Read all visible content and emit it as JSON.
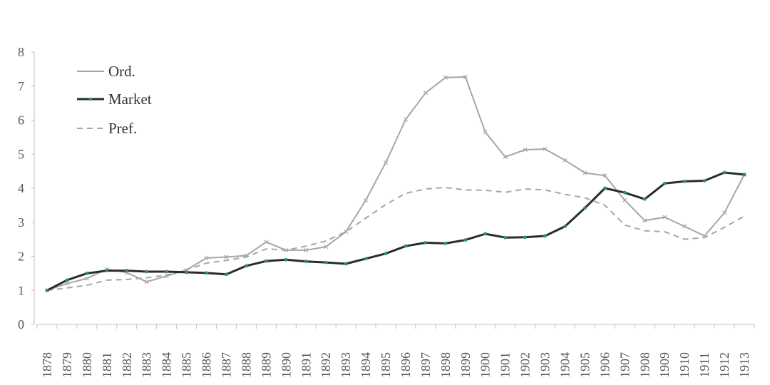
{
  "chart_data": {
    "type": "line",
    "x": [
      "1878",
      "1879",
      "1880",
      "1881",
      "1882",
      "1883",
      "1884",
      "1885",
      "1886",
      "1887",
      "1888",
      "1889",
      "1890",
      "1891",
      "1892",
      "1893",
      "1894",
      "1895",
      "1896",
      "1897",
      "1898",
      "1899",
      "1900",
      "1901",
      "1902",
      "1903",
      "1904",
      "1905",
      "1906",
      "1907",
      "1908",
      "1909",
      "1910",
      "1911",
      "1912",
      "1913"
    ],
    "series": [
      {
        "name": "Ord.",
        "color": "#a6a6a6",
        "style": "solid-x-markers",
        "values": [
          1.0,
          1.2,
          1.35,
          1.62,
          1.52,
          1.25,
          1.42,
          1.6,
          1.95,
          1.98,
          2.02,
          2.42,
          2.18,
          2.18,
          2.28,
          2.72,
          3.65,
          4.75,
          6.02,
          6.8,
          7.25,
          7.27,
          5.65,
          4.92,
          5.13,
          5.15,
          4.82,
          4.45,
          4.37,
          3.65,
          3.05,
          3.15,
          2.88,
          2.6,
          3.28,
          4.4
        ]
      },
      {
        "name": "Market",
        "color": "#2b2b2b",
        "marker_color": "#2e8b7a",
        "style": "solid-dot-markers",
        "values": [
          1.0,
          1.3,
          1.5,
          1.58,
          1.58,
          1.55,
          1.55,
          1.53,
          1.51,
          1.47,
          1.72,
          1.86,
          1.9,
          1.85,
          1.82,
          1.78,
          1.93,
          2.08,
          2.3,
          2.4,
          2.38,
          2.48,
          2.66,
          2.55,
          2.56,
          2.6,
          2.88,
          3.42,
          4.0,
          3.87,
          3.68,
          4.14,
          4.2,
          4.22,
          4.46,
          4.4
        ]
      },
      {
        "name": "Pref.",
        "color": "#a6a6a6",
        "style": "dashed",
        "values": [
          1.0,
          1.07,
          1.15,
          1.3,
          1.32,
          1.37,
          1.45,
          1.6,
          1.8,
          1.88,
          1.98,
          2.22,
          2.18,
          2.3,
          2.45,
          2.72,
          3.12,
          3.52,
          3.85,
          3.98,
          4.02,
          3.95,
          3.94,
          3.88,
          3.98,
          3.95,
          3.82,
          3.72,
          3.5,
          2.92,
          2.75,
          2.72,
          2.5,
          2.55,
          2.85,
          3.18
        ]
      }
    ],
    "yticks": [
      "0",
      "1",
      "2",
      "3",
      "4",
      "5",
      "6",
      "7",
      "8"
    ],
    "ylim": [
      0,
      8
    ],
    "grid": false,
    "legend_position": "top-left"
  }
}
